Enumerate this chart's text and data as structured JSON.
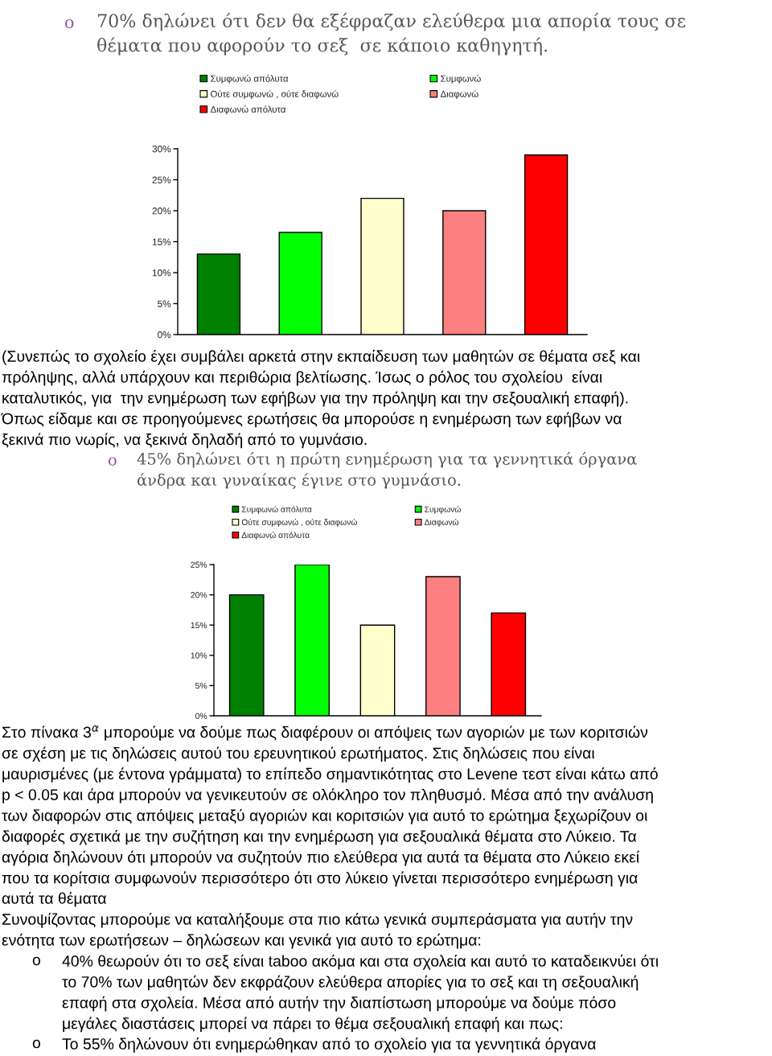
{
  "chart_data": [
    {
      "type": "bar",
      "title": "70% δηλώνει ότι δεν θα εξέφραζαν ελεύθερα μια απορία τους σε\nθέματα που αφορούν το σεξ  σε κάποιο καθηγητή.",
      "categories": [
        null
      ],
      "series": [
        {
          "name": "Συμφωνώ απόλυτα",
          "color": "#008000",
          "values": [
            13
          ]
        },
        {
          "name": "Συμφωνώ",
          "color": "#00ff00",
          "values": [
            16.5
          ]
        },
        {
          "name": "Ούτε συμφωνώ , ούτε διαφωνώ",
          "color": "#ffffcc",
          "values": [
            22
          ]
        },
        {
          "name": "Διαφωνώ",
          "color": "#ff8080",
          "values": [
            20
          ]
        },
        {
          "name": "Διαφωνώ απόλυτα",
          "color": "#ff0000",
          "values": [
            29
          ]
        }
      ],
      "ylim": [
        0,
        30
      ],
      "yticks": [
        {
          "value": 0,
          "label": "0%"
        },
        {
          "value": 5,
          "label": "5%"
        },
        {
          "value": 10,
          "label": "10%"
        },
        {
          "value": 15,
          "label": "15%"
        },
        {
          "value": 20,
          "label": "20%"
        },
        {
          "value": 25,
          "label": "25%"
        },
        {
          "value": 30,
          "label": "30%"
        }
      ],
      "tick_labels": "y",
      "legend": "top",
      "annotations": [
        "o",
        "(Συνεπώς το σχολείο έχει συμβάλει αρκετά στην εκπαίδευση των μαθητών σε θέματα σεξ και\nπρόληψης, αλλά υπάρχουν και περιθώρια βελτίωσης. Ίσως ο ρόλος του σχολείου  είναι\nκαταλυτικός, για  την ενημέρωση των εφήβων για την πρόληψη και την σεξουαλική επαφή).\nΌπως είδαμε και σε προηγούμενες ερωτήσεις θα μπορούσε η ενημέρωση των εφήβων να\nξεκινά πιο νωρίς, να ξεκινά δηλαδή από το γυμνάσιο."
      ]
    },
    {
      "type": "bar",
      "title": "45% δηλώνει ότι η πρώτη ενημέρωση για τα γεννητικά όργανα\nάνδρα και γυναίκας έγινε στο γυμνάσιο.",
      "categories": [
        null
      ],
      "series": [
        {
          "name": "Συμφωνώ απόλυτα",
          "color": "#008000",
          "values": [
            20
          ]
        },
        {
          "name": "Συμφωνώ",
          "color": "#00ff00",
          "values": [
            25
          ]
        },
        {
          "name": "Ούτε συμφωνώ , ούτε διαφωνώ",
          "color": "#ffffcc",
          "values": [
            15
          ]
        },
        {
          "name": "Διαφωνώ",
          "color": "#ff8080",
          "values": [
            23
          ]
        },
        {
          "name": "Διαφωνώ απόλυτα",
          "color": "#ff0000",
          "values": [
            17
          ]
        }
      ],
      "ylim": [
        0,
        25
      ],
      "yticks": [
        {
          "value": 0,
          "label": "0%"
        },
        {
          "value": 5,
          "label": "5%"
        },
        {
          "value": 10,
          "label": "10%"
        },
        {
          "value": 15,
          "label": "15%"
        },
        {
          "value": 20,
          "label": "20%"
        },
        {
          "value": 25,
          "label": "25%"
        }
      ],
      "tick_labels": "y",
      "legend": "top",
      "annotations": [
        "o",
        "Στο πίνακα 3$^{α}$ μπορούμε να δούμε πως διαφέρουν οι απόψεις των αγοριών με των κοριτσιών\nσε σχέση με τις δηλώσεις αυτού του ερευνητικού ερωτήματος. Στις δηλώσεις που είναι\nμαυρισμένες (με έντονα γράμματα) το επίπεδο σημαντικότητας στο Levene τεστ είναι κάτω από\np < 0.05 και άρα μπορούν να γενικευτούν σε ολόκληρο τον πληθυσμό. Μέσα από την ανάλυση\nτων διαφορών στις απόψεις μεταξύ αγοριών και κοριτσιών για αυτό το ερώτημα ξεχωρίζουν οι\nδιαφορές σχετικά με την συζήτηση και την ενημέρωση για σεξουαλικά θέματα στο Λύκειο. Τα\nαγόρια δηλώνουν ότι μπορούν να συζητούν πιο ελεύθερα για αυτά τα θέματα στο Λύκειο εκεί\nπου τα κορίτσια συμφωνούν περισσότερο ότι στο λύκειο γίνεται περισσότερο ενημέρωση για\nαυτά τα θέματα",
        "Συνοψίζοντας μπορούμε να καταλήξουμε στα πιο κάτω γενικά συμπεράσματα για αυτήν την\nενότητα των ερωτήσεων – δηλώσεων και γενικά για αυτό το ερώτημα:",
        "o",
        "40% θεωρούν ότι το σεξ είναι taboo ακόμα και στα σχολεία και αυτό το καταδεικνύει ότι\nτο 70% των μαθητών δεν εκφράζουν ελεύθερα απορίες για το σεξ και τη σεξουαλική\nεπαφή στα σχολεία. Μέσα από αυτήν την διαπίστωση μπορούμε να δούμε πόσο\nμεγάλες διαστάσεις μπορεί να πάρει το θέμα σεξουαλική επαφή και πως:",
        "o",
        "Το 55% δηλώνουν ότι ενημερώθηκαν από το σχολείο για τα γεννητικά όργανα"
      ]
    }
  ]
}
